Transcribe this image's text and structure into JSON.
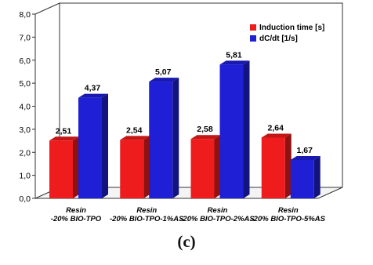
{
  "chart_data": {
    "type": "bar",
    "categories": [
      [
        "Resin",
        "-20% BIO-TPO"
      ],
      [
        "Resin",
        "-20% BIO-TPO-1%AS"
      ],
      [
        "Resin",
        "-20% BIO-TPO-2%AS"
      ],
      [
        "Resin",
        "-20% BIO-TPO-5%AS"
      ]
    ],
    "series": [
      {
        "name": "Induction time [s]",
        "color": "#ee1c1c",
        "values": [
          2.51,
          2.54,
          2.58,
          2.64
        ],
        "labels": [
          "2,51",
          "2,54",
          "2,58",
          "2,64"
        ]
      },
      {
        "name": "dC/dt [1/s]",
        "color": "#1f1fd6",
        "values": [
          4.37,
          5.07,
          5.81,
          1.67
        ],
        "labels": [
          "4,37",
          "5,07",
          "5,81",
          "1,67"
        ]
      }
    ],
    "ylim": [
      0,
      8
    ],
    "yticks": [
      "0,0",
      "1,0",
      "2,0",
      "3,0",
      "4,0",
      "5,0",
      "6,0",
      "7,0",
      "8,0"
    ],
    "legend_position": "top-right",
    "grid": false,
    "three_d": true
  },
  "caption": "(c)"
}
